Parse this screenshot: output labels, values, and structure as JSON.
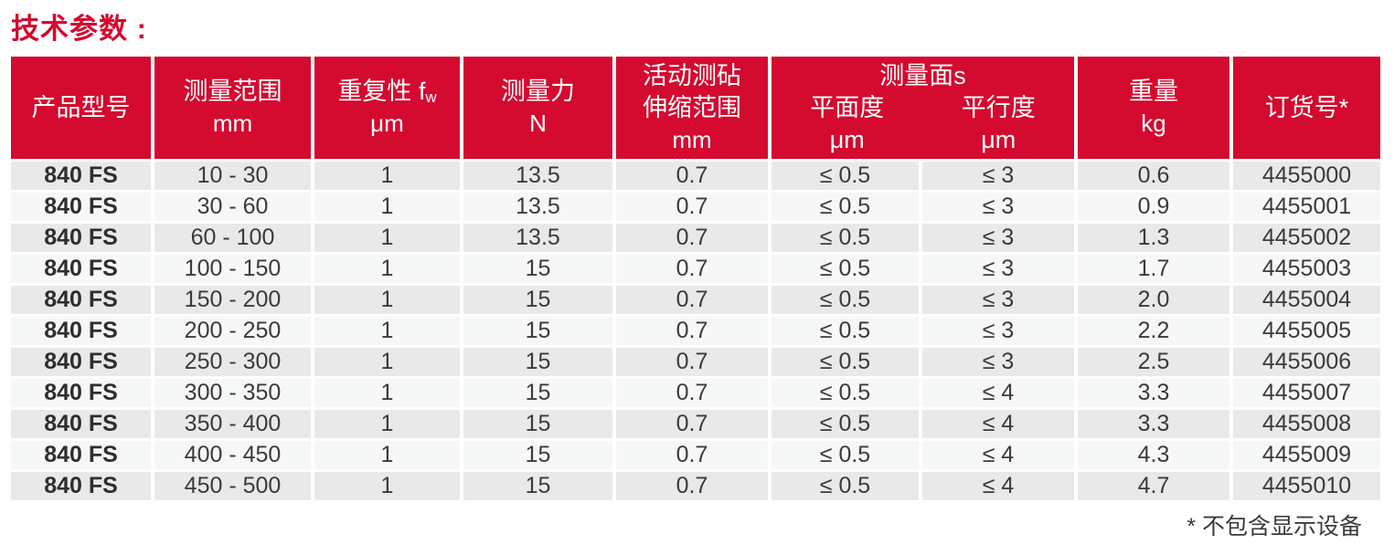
{
  "page": {
    "title": "技术参数 :"
  },
  "table": {
    "header": {
      "product_model": "产品型号",
      "measuring_range": "测量范围",
      "measuring_range_unit": "mm",
      "repeatability": "重复性 f",
      "repeatability_sub": "w",
      "repeatability_unit": "μm",
      "measuring_force": "测量力",
      "measuring_force_unit": "N",
      "anvil_line1": "活动测砧",
      "anvil_line2": "伸缩范围",
      "anvil_unit": "mm",
      "faces_group": "测量面s",
      "flatness": "平面度",
      "flatness_unit": "μm",
      "parallelism": "平行度",
      "parallelism_unit": "μm",
      "weight": "重量",
      "weight_unit": "kg",
      "order_no": "订货号*"
    },
    "rows": [
      [
        "840 FS",
        "10 - 30",
        "1",
        "13.5",
        "0.7",
        "≤ 0.5",
        "≤ 3",
        "0.6",
        "4455000"
      ],
      [
        "840 FS",
        "30 - 60",
        "1",
        "13.5",
        "0.7",
        "≤ 0.5",
        "≤ 3",
        "0.9",
        "4455001"
      ],
      [
        "840 FS",
        "60 - 100",
        "1",
        "13.5",
        "0.7",
        "≤ 0.5",
        "≤ 3",
        "1.3",
        "4455002"
      ],
      [
        "840 FS",
        "100 - 150",
        "1",
        "15",
        "0.7",
        "≤ 0.5",
        "≤ 3",
        "1.7",
        "4455003"
      ],
      [
        "840 FS",
        "150 - 200",
        "1",
        "15",
        "0.7",
        "≤ 0.5",
        "≤ 3",
        "2.0",
        "4455004"
      ],
      [
        "840 FS",
        "200 - 250",
        "1",
        "15",
        "0.7",
        "≤ 0.5",
        "≤ 3",
        "2.2",
        "4455005"
      ],
      [
        "840 FS",
        "250 - 300",
        "1",
        "15",
        "0.7",
        "≤ 0.5",
        "≤ 3",
        "2.5",
        "4455006"
      ],
      [
        "840 FS",
        "300 - 350",
        "1",
        "15",
        "0.7",
        "≤ 0.5",
        "≤ 4",
        "3.3",
        "4455007"
      ],
      [
        "840 FS",
        "350 - 400",
        "1",
        "15",
        "0.7",
        "≤ 0.5",
        "≤ 4",
        "3.3",
        "4455008"
      ],
      [
        "840 FS",
        "400 - 450",
        "1",
        "15",
        "0.7",
        "≤ 0.5",
        "≤ 4",
        "4.3",
        "4455009"
      ],
      [
        "840 FS",
        "450 - 500",
        "1",
        "15",
        "0.7",
        "≤ 0.5",
        "≤ 4",
        "4.7",
        "4455010"
      ]
    ]
  },
  "footnote": "* 不包含显示设备",
  "colors": {
    "brand_red": "#d40a2f",
    "row_odd": "#e9e9e9",
    "row_even": "#f6f7f7",
    "header_text": "#ffffff",
    "body_text": "#3b3b3b"
  }
}
